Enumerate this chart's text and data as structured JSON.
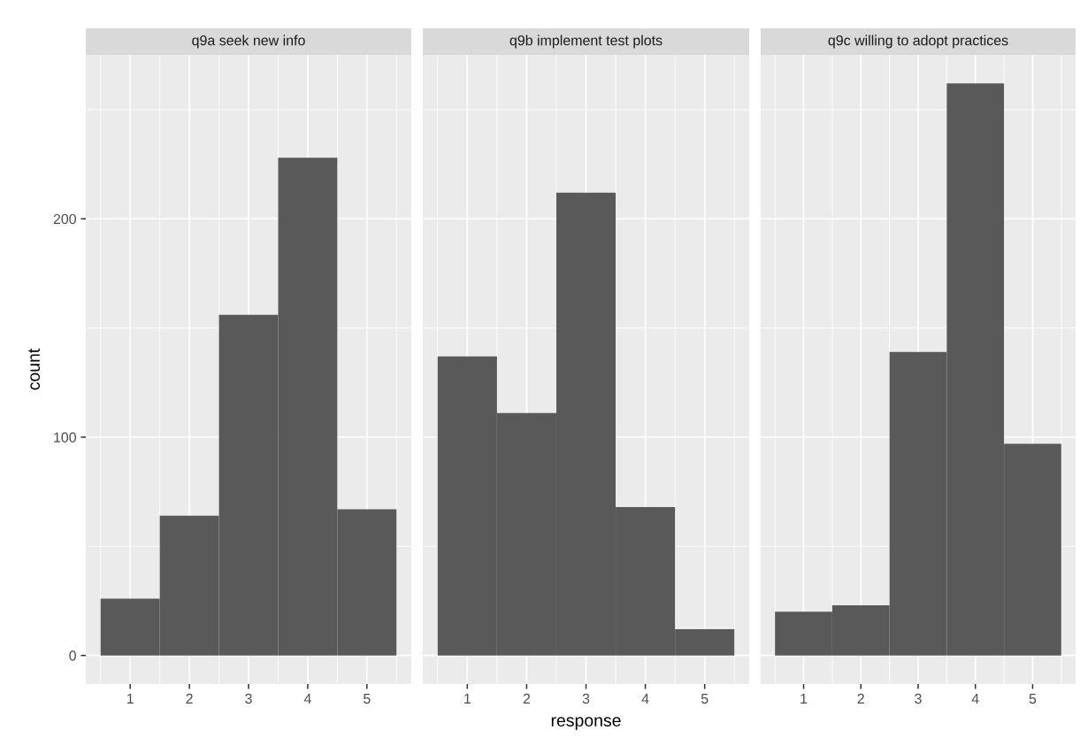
{
  "chart_data": [
    {
      "type": "histogram",
      "title": "q9a seek new info",
      "ylabel": "count",
      "bins": [
        0.5,
        1.5,
        2.5,
        3.5,
        4.5,
        5.5
      ],
      "values": [
        26,
        64,
        156,
        228,
        67
      ],
      "color": "#595959",
      "xlim": [
        0.25,
        5.75
      ],
      "xticks": [
        1,
        2,
        3,
        4,
        5
      ],
      "ylim": [
        -13.1,
        275.1
      ],
      "yticks": [
        0,
        100,
        200
      ],
      "grid": true
    },
    {
      "type": "histogram",
      "title": "q9b implement test plots",
      "xlabel": "response",
      "bins": [
        0.5,
        1.5,
        2.5,
        3.5,
        4.5,
        5.5
      ],
      "values": [
        137,
        111,
        212,
        68,
        12
      ],
      "color": "#595959",
      "xlim": [
        0.25,
        5.75
      ],
      "xticks": [
        1,
        2,
        3,
        4,
        5
      ],
      "ylim": [
        -13.1,
        275.1
      ],
      "yticks": [
        0,
        100,
        200
      ],
      "grid": true,
      "tick_labels": "x"
    },
    {
      "type": "histogram",
      "title": "q9c willing to adopt practices",
      "bins": [
        0.5,
        1.5,
        2.5,
        3.5,
        4.5,
        5.5
      ],
      "values": [
        20,
        23,
        139,
        262,
        97
      ],
      "color": "#595959",
      "xlim": [
        0.25,
        5.75
      ],
      "xticks": [
        1,
        2,
        3,
        4,
        5
      ],
      "ylim": [
        -13.1,
        275.1
      ],
      "yticks": [
        0,
        100,
        200
      ],
      "grid": true,
      "tick_labels": "x"
    }
  ]
}
